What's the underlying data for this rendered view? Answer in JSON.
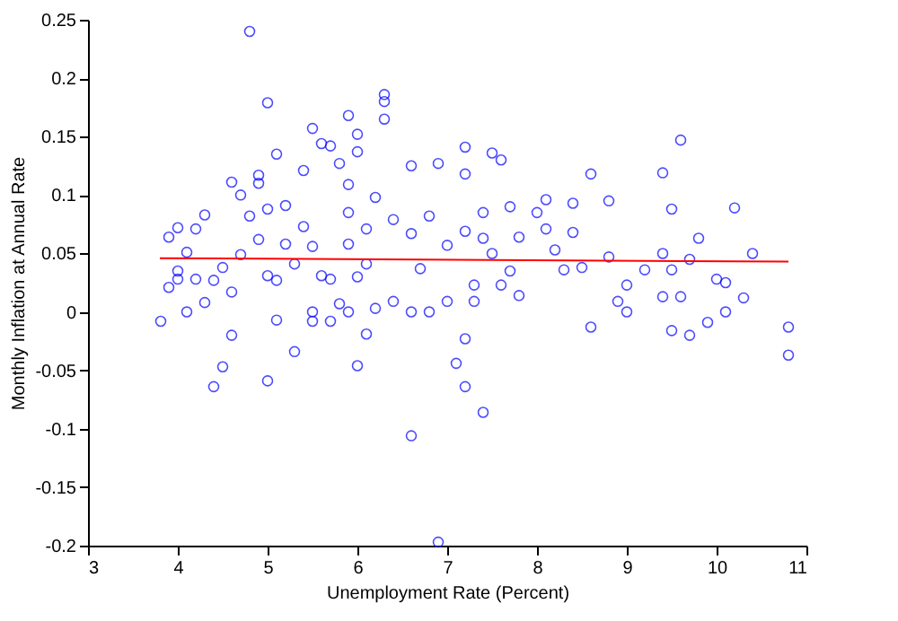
{
  "chart_data": {
    "type": "scatter",
    "xlabel": "Unemployment Rate (Percent)",
    "ylabel": "Monthly Inflation at Annual Rate",
    "xlim": [
      3,
      11
    ],
    "xticks": [
      3,
      4,
      5,
      6,
      7,
      8,
      9,
      10,
      11
    ],
    "ylim": [
      -0.2,
      0.25
    ],
    "yticks": [
      -0.2,
      -0.15,
      -0.1,
      -0.05,
      0,
      0.05,
      0.1,
      0.15,
      0.2,
      0.25
    ],
    "grid": false,
    "legend": false,
    "series": [
      {
        "type": "scatter",
        "marker": "circle",
        "color": "#0000ff",
        "x": [
          3.81,
          3.9,
          4.0,
          4.0,
          3.9,
          4.1,
          4.3,
          4.2,
          4.4,
          4.5,
          4.6,
          4.6,
          4.7,
          4.8,
          4.9,
          4.9,
          5.0,
          5.0,
          5.0,
          5.1,
          5.2,
          5.3,
          5.5,
          5.4,
          5.6,
          5.7,
          5.9,
          6.0,
          6.0,
          6.1,
          6.3,
          6.3,
          6.3,
          6.6,
          6.6,
          6.9,
          6.9,
          7.2,
          7.2,
          7.1,
          7.2,
          7.2,
          7.4,
          7.5,
          7.6,
          7.7,
          8.0,
          8.1,
          8.4,
          8.6,
          8.6,
          8.8,
          8.9,
          9.0,
          9.0,
          9.2,
          9.4,
          9.5,
          9.6,
          9.5,
          9.7,
          9.8,
          9.9,
          10.1,
          10.2,
          10.4,
          10.3,
          10.8,
          10.8,
          9.7,
          10.0,
          10.1,
          9.6,
          9.4,
          9.4,
          9.5,
          8.8,
          8.5,
          8.3,
          8.2,
          8.1,
          8.4,
          7.8,
          7.8,
          7.6,
          7.7,
          7.4,
          7.4,
          7.5,
          7.3,
          7.3,
          7.2,
          7.0,
          7.0,
          6.8,
          6.8,
          6.7,
          6.6,
          6.6,
          6.4,
          6.4,
          6.2,
          6.1,
          6.0,
          5.9,
          5.9,
          5.8,
          5.7,
          5.6,
          5.5,
          5.4,
          5.3,
          5.2,
          5.1,
          5.1,
          5.0,
          4.9,
          4.8,
          4.7,
          4.6,
          4.5,
          4.4,
          4.3,
          4.2,
          4.1,
          4.0,
          5.7,
          5.5,
          5.9,
          5.5,
          5.8,
          6.1,
          6.2,
          6.0,
          5.9
        ],
        "values": [
          -0.008,
          0.064,
          0.072,
          0.035,
          0.021,
          0.0,
          0.083,
          0.071,
          -0.064,
          -0.047,
          -0.02,
          0.111,
          0.1,
          0.24,
          0.117,
          0.11,
          0.179,
          -0.059,
          0.088,
          0.135,
          0.091,
          -0.034,
          0.157,
          0.121,
          0.144,
          0.142,
          0.168,
          0.152,
          -0.046,
          -0.019,
          0.186,
          0.18,
          0.165,
          0.125,
          -0.106,
          -0.197,
          0.127,
          0.141,
          0.118,
          -0.044,
          -0.023,
          -0.064,
          -0.086,
          0.136,
          0.13,
          0.09,
          0.085,
          0.096,
          0.093,
          0.118,
          -0.013,
          0.095,
          0.009,
          0.0,
          0.023,
          0.036,
          0.119,
          0.088,
          0.147,
          -0.016,
          -0.02,
          0.063,
          -0.009,
          0.0,
          0.089,
          0.05,
          0.012,
          -0.013,
          -0.037,
          0.045,
          0.028,
          0.025,
          0.013,
          0.013,
          0.05,
          0.036,
          0.047,
          0.038,
          0.036,
          0.053,
          0.071,
          0.068,
          0.064,
          0.014,
          0.023,
          0.035,
          0.063,
          0.085,
          0.05,
          0.023,
          0.009,
          0.069,
          0.009,
          0.057,
          0.082,
          0.0,
          0.037,
          0.067,
          0.0,
          0.079,
          0.009,
          0.003,
          0.041,
          0.03,
          0.085,
          0.058,
          0.127,
          0.028,
          0.031,
          0.056,
          0.073,
          0.041,
          0.058,
          0.027,
          -0.007,
          0.031,
          0.062,
          0.082,
          0.049,
          0.017,
          0.038,
          0.027,
          0.008,
          0.028,
          0.051,
          0.028,
          -0.008,
          -0.008,
          0.0,
          0.0,
          0.007,
          0.071,
          0.098,
          0.137,
          0.109
        ]
      },
      {
        "type": "line",
        "marker": "none",
        "color": "#ff0000",
        "x": [
          3.8,
          10.8
        ],
        "values": [
          0.046,
          0.043
        ]
      }
    ]
  }
}
